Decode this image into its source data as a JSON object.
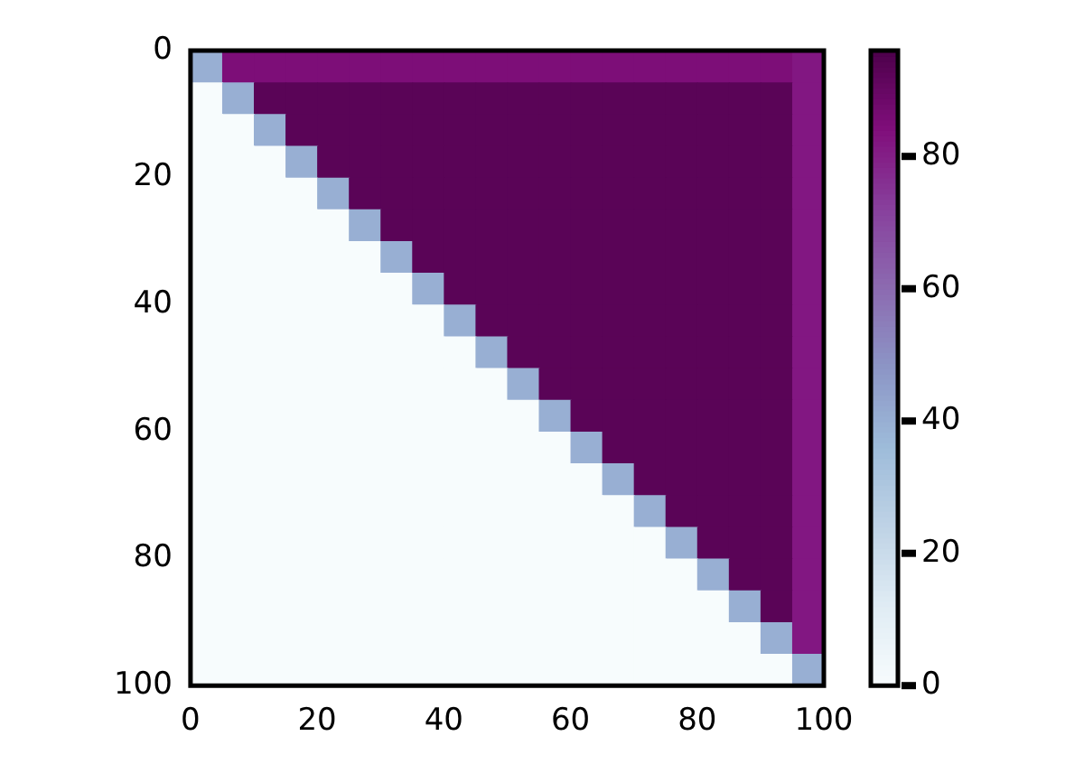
{
  "chart_data": {
    "type": "heatmap",
    "x": [
      2.5,
      7.5,
      12.5,
      17.5,
      22.5,
      27.5,
      32.5,
      37.5,
      42.5,
      47.5,
      52.5,
      57.5,
      62.5,
      67.5,
      72.5,
      77.5,
      82.5,
      87.5,
      92.5,
      97.5
    ],
    "y": [
      2.5,
      7.5,
      12.5,
      17.5,
      22.5,
      27.5,
      32.5,
      37.5,
      42.5,
      47.5,
      52.5,
      57.5,
      62.5,
      67.5,
      72.5,
      77.5,
      82.5,
      87.5,
      92.5,
      97.5
    ],
    "xlim": [
      0,
      100
    ],
    "xticks": [
      0,
      20,
      40,
      60,
      80,
      100
    ],
    "ylim": [
      100,
      0
    ],
    "yticks": [
      0,
      20,
      40,
      60,
      80,
      100
    ],
    "clim": [
      0,
      96
    ],
    "cticks": [
      0,
      20,
      40,
      60,
      80
    ],
    "cells": [
      [
        40,
        85,
        85,
        85,
        85,
        85,
        85,
        85,
        85,
        85,
        85,
        85,
        85,
        85,
        85,
        85,
        85,
        85,
        85,
        82
      ],
      [
        0,
        40,
        93,
        93,
        93,
        93,
        93,
        93,
        93,
        93,
        93,
        93,
        93,
        93,
        93,
        93,
        93,
        93,
        93,
        82
      ],
      [
        0,
        0,
        40,
        93,
        93,
        93,
        93,
        93,
        93,
        93,
        93,
        93,
        93,
        93,
        93,
        93,
        93,
        93,
        93,
        82
      ],
      [
        0,
        0,
        0,
        40,
        93,
        93,
        93,
        93,
        93,
        93,
        93,
        93,
        93,
        93,
        93,
        93,
        93,
        93,
        93,
        82
      ],
      [
        0,
        0,
        0,
        0,
        40,
        93,
        93,
        93,
        93,
        93,
        93,
        93,
        93,
        93,
        93,
        93,
        93,
        93,
        93,
        82
      ],
      [
        0,
        0,
        0,
        0,
        0,
        40,
        93,
        93,
        93,
        93,
        93,
        93,
        93,
        93,
        93,
        93,
        93,
        93,
        93,
        82
      ],
      [
        0,
        0,
        0,
        0,
        0,
        0,
        40,
        93,
        93,
        93,
        93,
        93,
        93,
        93,
        93,
        93,
        93,
        93,
        93,
        82
      ],
      [
        0,
        0,
        0,
        0,
        0,
        0,
        0,
        40,
        93,
        93,
        93,
        93,
        93,
        93,
        93,
        93,
        93,
        93,
        93,
        82
      ],
      [
        0,
        0,
        0,
        0,
        0,
        0,
        0,
        0,
        40,
        93,
        93,
        93,
        93,
        93,
        93,
        93,
        93,
        93,
        93,
        82
      ],
      [
        0,
        0,
        0,
        0,
        0,
        0,
        0,
        0,
        0,
        40,
        93,
        93,
        93,
        93,
        93,
        93,
        93,
        93,
        93,
        82
      ],
      [
        0,
        0,
        0,
        0,
        0,
        0,
        0,
        0,
        0,
        0,
        40,
        93,
        93,
        93,
        93,
        93,
        93,
        93,
        93,
        82
      ],
      [
        0,
        0,
        0,
        0,
        0,
        0,
        0,
        0,
        0,
        0,
        0,
        40,
        93,
        93,
        93,
        93,
        93,
        93,
        93,
        82
      ],
      [
        0,
        0,
        0,
        0,
        0,
        0,
        0,
        0,
        0,
        0,
        0,
        0,
        40,
        93,
        93,
        93,
        93,
        93,
        93,
        82
      ],
      [
        0,
        0,
        0,
        0,
        0,
        0,
        0,
        0,
        0,
        0,
        0,
        0,
        0,
        40,
        93,
        93,
        93,
        93,
        93,
        82
      ],
      [
        0,
        0,
        0,
        0,
        0,
        0,
        0,
        0,
        0,
        0,
        0,
        0,
        0,
        0,
        40,
        93,
        93,
        93,
        93,
        82
      ],
      [
        0,
        0,
        0,
        0,
        0,
        0,
        0,
        0,
        0,
        0,
        0,
        0,
        0,
        0,
        0,
        40,
        93,
        93,
        93,
        82
      ],
      [
        0,
        0,
        0,
        0,
        0,
        0,
        0,
        0,
        0,
        0,
        0,
        0,
        0,
        0,
        0,
        0,
        40,
        93,
        93,
        82
      ],
      [
        0,
        0,
        0,
        0,
        0,
        0,
        0,
        0,
        0,
        0,
        0,
        0,
        0,
        0,
        0,
        0,
        0,
        40,
        93,
        82
      ],
      [
        0,
        0,
        0,
        0,
        0,
        0,
        0,
        0,
        0,
        0,
        0,
        0,
        0,
        0,
        0,
        0,
        0,
        0,
        40,
        82
      ],
      [
        0,
        0,
        0,
        0,
        0,
        0,
        0,
        0,
        0,
        0,
        0,
        0,
        0,
        0,
        0,
        0,
        0,
        0,
        0,
        40
      ]
    ]
  }
}
